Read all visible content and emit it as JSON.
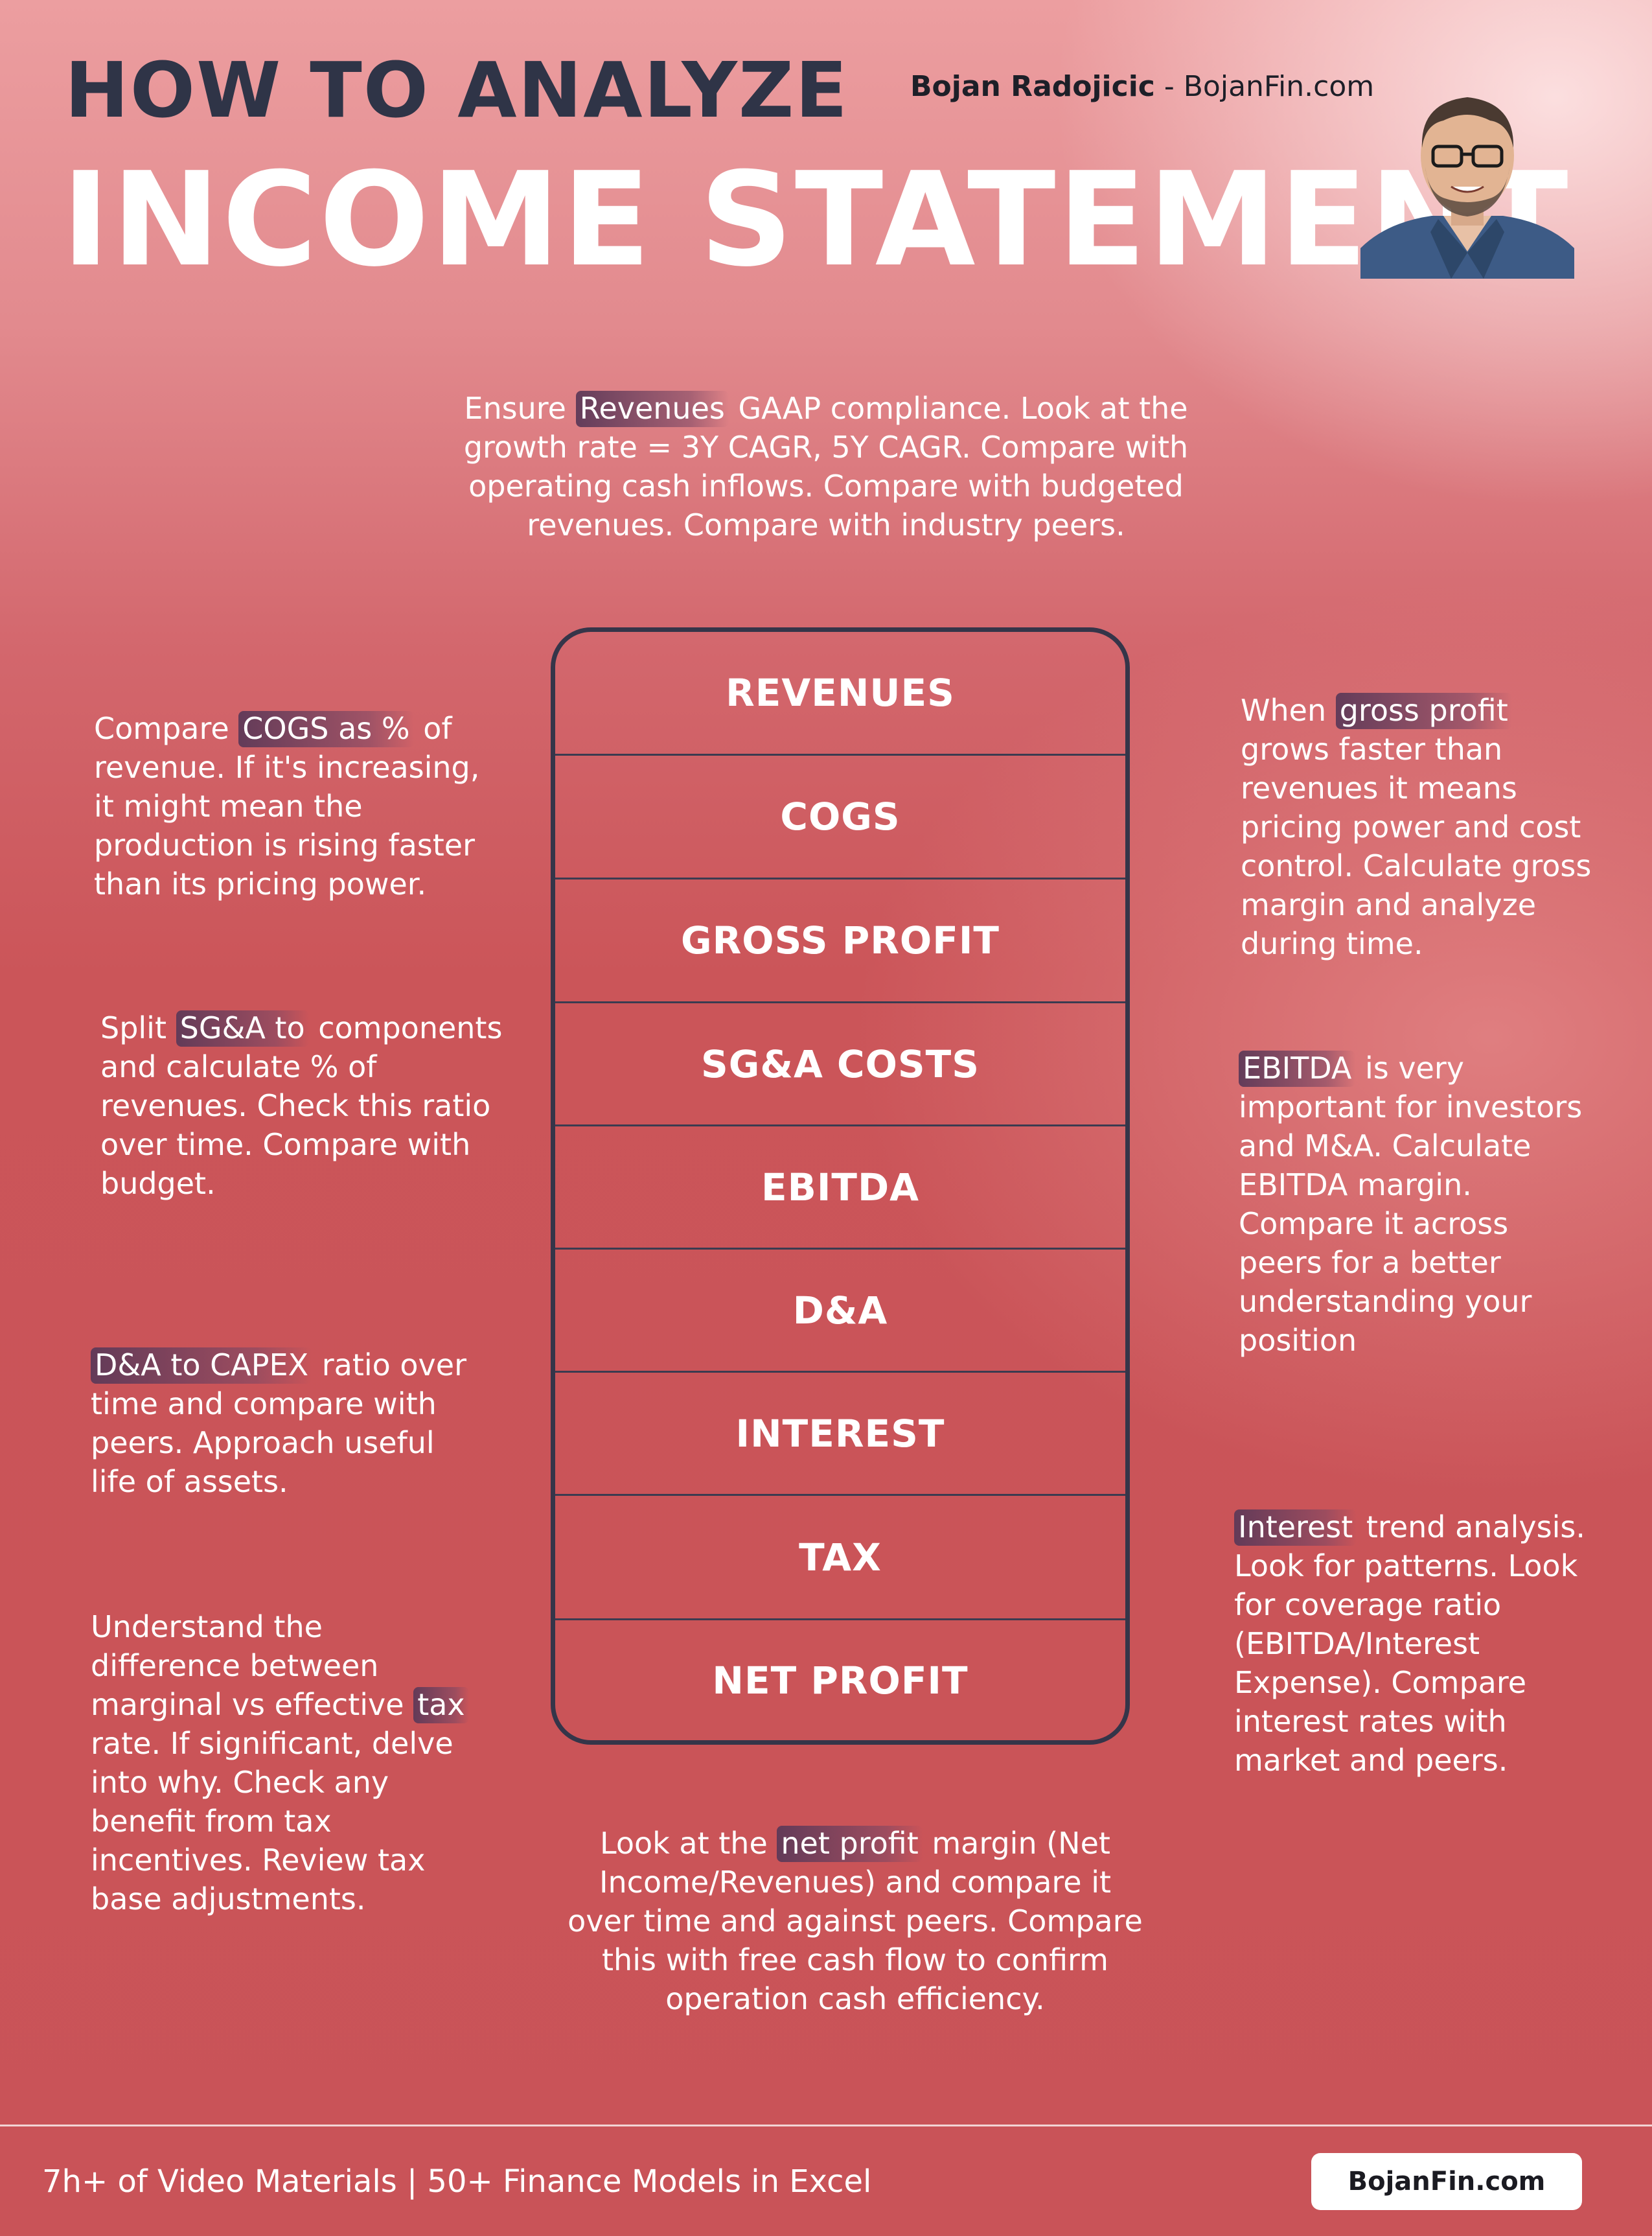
{
  "header": {
    "title_line1": "HOW TO ANALYZE",
    "title_line2": "INCOME STATEMENT",
    "author_name": "Bojan Radojicic",
    "author_sep": " - ",
    "author_site": "BojanFin.com"
  },
  "stack": {
    "items": [
      "REVENUES",
      "COGS",
      "GROSS PROFIT",
      "SG&A COSTS",
      "EBITDA",
      "D&A",
      "INTEREST",
      "TAX",
      "NET PROFIT"
    ]
  },
  "notes": {
    "revenues": {
      "pre": "Ensure ",
      "hl": "Revenues",
      "post": " GAAP compliance. Look at the growth rate = 3Y CAGR, 5Y CAGR. Compare with operating cash inflows. Compare with budgeted revenues. Compare with industry peers."
    },
    "cogs": {
      "pre": "Compare ",
      "hl": "COGS as %",
      "post": " of revenue. If it's increasing, it might mean the production is rising faster than its pricing power."
    },
    "gross_profit": {
      "pre": "When ",
      "hl": "gross profit",
      "post": " grows faster than revenues it means pricing power and cost control. Calculate gross margin and analyze during time."
    },
    "sga": {
      "pre": "Split ",
      "hl": "SG&A to",
      "post": " components and calculate % of revenues. Check this ratio over time. Compare with budget."
    },
    "ebitda": {
      "pre": "",
      "hl": "EBITDA",
      "post": " is very important for investors and M&A. Calculate EBITDA margin. Compare it across peers for a better understanding your position"
    },
    "da": {
      "pre": "",
      "hl": "D&A to CAPEX",
      "post": " ratio over time and compare with peers. Approach useful life of assets."
    },
    "interest": {
      "pre": "",
      "hl": "Interest",
      "post": " trend analysis. Look for patterns. Look for coverage ratio (EBITDA/Interest Expense). Compare interest rates with market and  peers."
    },
    "tax": {
      "pre": "Understand the difference between marginal vs effective ",
      "hl": "tax",
      "post": " rate. If significant, delve into why. Check any benefit from tax incentives. Review tax base adjustments."
    },
    "net_profit": {
      "pre": "Look at the ",
      "hl": "net profit",
      "post": " margin (Net Income/Revenues) and compare it over time and against peers. Compare this with free cash flow to confirm operation cash efficiency."
    }
  },
  "footer": {
    "tagline": "7h+ of Video Materials | 50+ Finance Models in Excel",
    "button_label": "BojanFin.com"
  }
}
